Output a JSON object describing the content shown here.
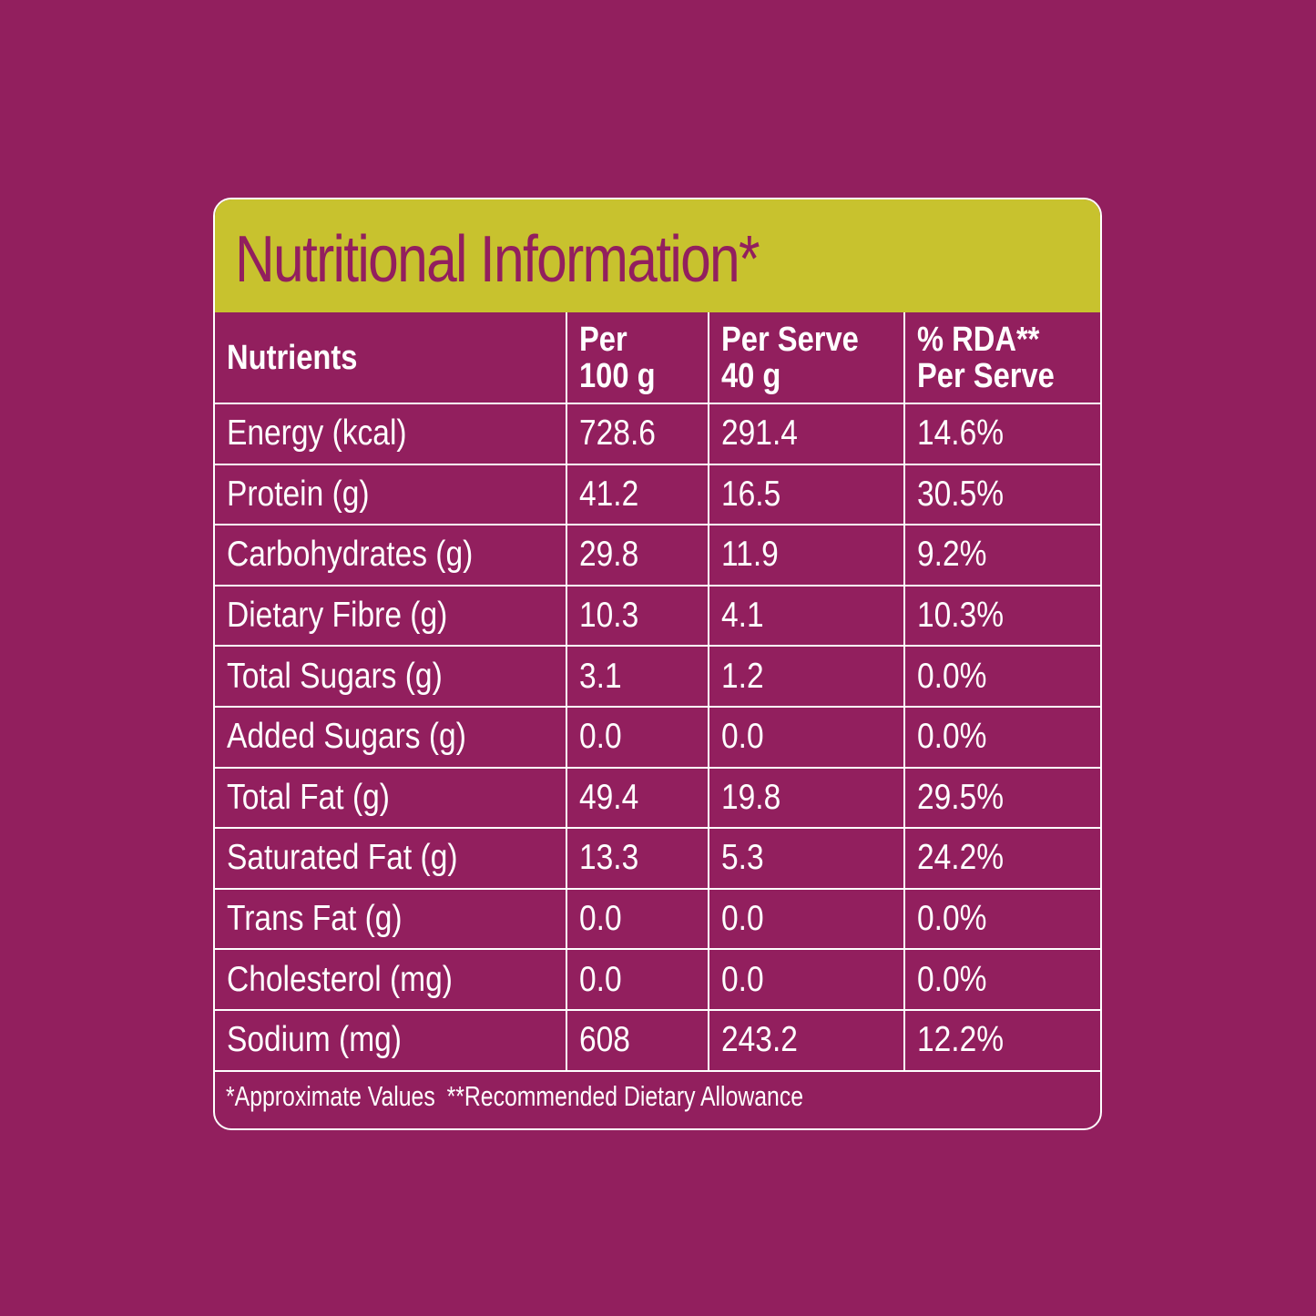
{
  "title": "Nutritional Information*",
  "colors": {
    "background": "#921f5e",
    "header_band": "#c8c22e",
    "text": "#ffffff",
    "title_text": "#921f5e"
  },
  "table": {
    "headers": {
      "nutrients": "Nutrients",
      "per100": [
        "Per",
        "100 g"
      ],
      "perServe": [
        "Per Serve",
        "40 g"
      ],
      "rda": [
        "% RDA**",
        "Per Serve"
      ]
    },
    "rows": [
      {
        "name": "Energy (kcal)",
        "per100": "728.6",
        "perServe": "291.4",
        "rda": "14.6%"
      },
      {
        "name": "Protein (g)",
        "per100": "41.2",
        "perServe": "16.5",
        "rda": "30.5%"
      },
      {
        "name": "Carbohydrates (g)",
        "per100": "29.8",
        "perServe": "11.9",
        "rda": "9.2%"
      },
      {
        "name": "Dietary Fibre (g)",
        "per100": "10.3",
        "perServe": "4.1",
        "rda": "10.3%"
      },
      {
        "name": "Total Sugars (g)",
        "per100": "3.1",
        "perServe": "1.2",
        "rda": "0.0%"
      },
      {
        "name": "Added Sugars (g)",
        "per100": "0.0",
        "perServe": "0.0",
        "rda": "0.0%"
      },
      {
        "name": "Total Fat (g)",
        "per100": "49.4",
        "perServe": "19.8",
        "rda": "29.5%"
      },
      {
        "name": "Saturated Fat (g)",
        "per100": "13.3",
        "perServe": "5.3",
        "rda": "24.2%"
      },
      {
        "name": "Trans Fat (g)",
        "per100": "0.0",
        "perServe": "0.0",
        "rda": "0.0%"
      },
      {
        "name": "Cholesterol (mg)",
        "per100": "0.0",
        "perServe": "0.0",
        "rda": "0.0%"
      },
      {
        "name": "Sodium (mg)",
        "per100": "608",
        "perServe": "243.2",
        "rda": "12.2%"
      }
    ]
  },
  "footnotes": {
    "approx": "*Approximate Values",
    "rda": "**Recommended Dietary Allowance"
  }
}
